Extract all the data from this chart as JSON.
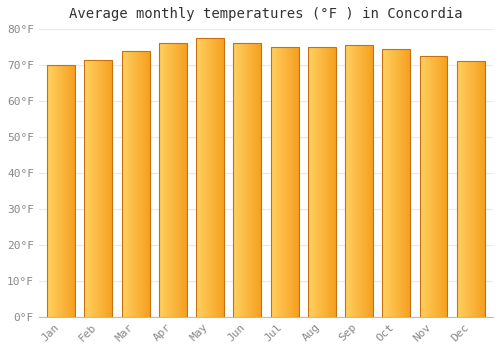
{
  "title": "Average monthly temperatures (°F ) in Concordia",
  "months": [
    "Jan",
    "Feb",
    "Mar",
    "Apr",
    "May",
    "Jun",
    "Jul",
    "Aug",
    "Sep",
    "Oct",
    "Nov",
    "Dec"
  ],
  "values": [
    70.0,
    71.5,
    74.0,
    76.0,
    77.5,
    76.0,
    75.0,
    75.0,
    75.5,
    74.5,
    72.5,
    71.0
  ],
  "bar_color_left": "#FFD060",
  "bar_color_right": "#F5A020",
  "background_color": "#FFFFFF",
  "grid_color": "#E8E8E8",
  "tick_color": "#888888",
  "title_fontsize": 10,
  "tick_fontsize": 8,
  "ylim": [
    0,
    80
  ],
  "yticks": [
    0,
    10,
    20,
    30,
    40,
    50,
    60,
    70,
    80
  ],
  "bar_edge_color": "#C87010",
  "bar_width": 0.75
}
